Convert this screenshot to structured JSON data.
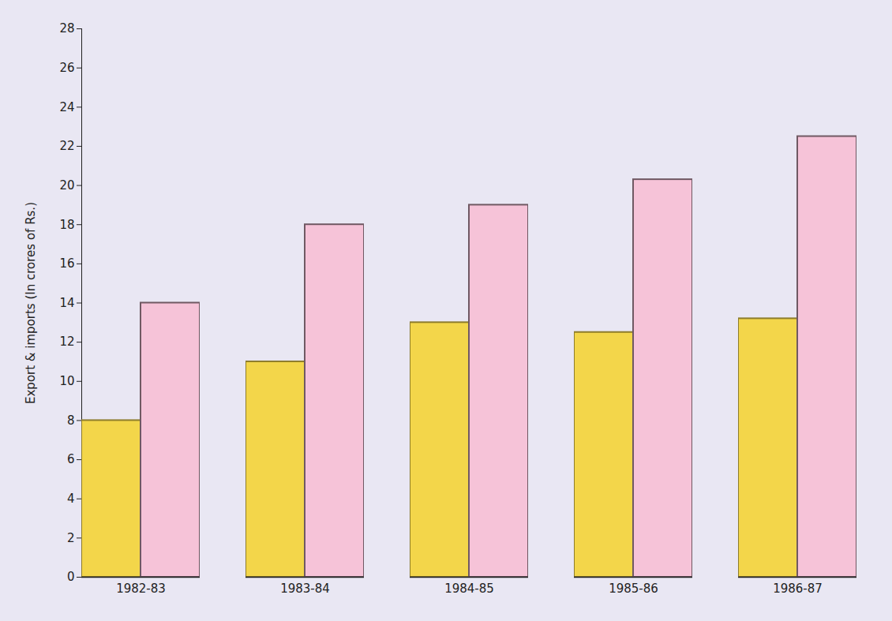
{
  "chart_data": {
    "type": "bar",
    "y_label": "Export & imports (In crores of Rs.)",
    "categories": [
      "1982-83",
      "1983-84",
      "1984-85",
      "1985-86",
      "1986-87"
    ],
    "series": [
      {
        "color": "#f3d64a",
        "values": [
          8,
          11,
          13,
          12.5,
          13.2
        ]
      },
      {
        "color": "#f6c3d8",
        "values": [
          14,
          18,
          19,
          20.3,
          22.5
        ]
      }
    ],
    "ylim": [
      0,
      28
    ],
    "yticks": [
      0,
      2,
      4,
      6,
      8,
      10,
      12,
      14,
      16,
      18,
      20,
      22,
      24,
      26,
      28
    ],
    "grid": false
  }
}
